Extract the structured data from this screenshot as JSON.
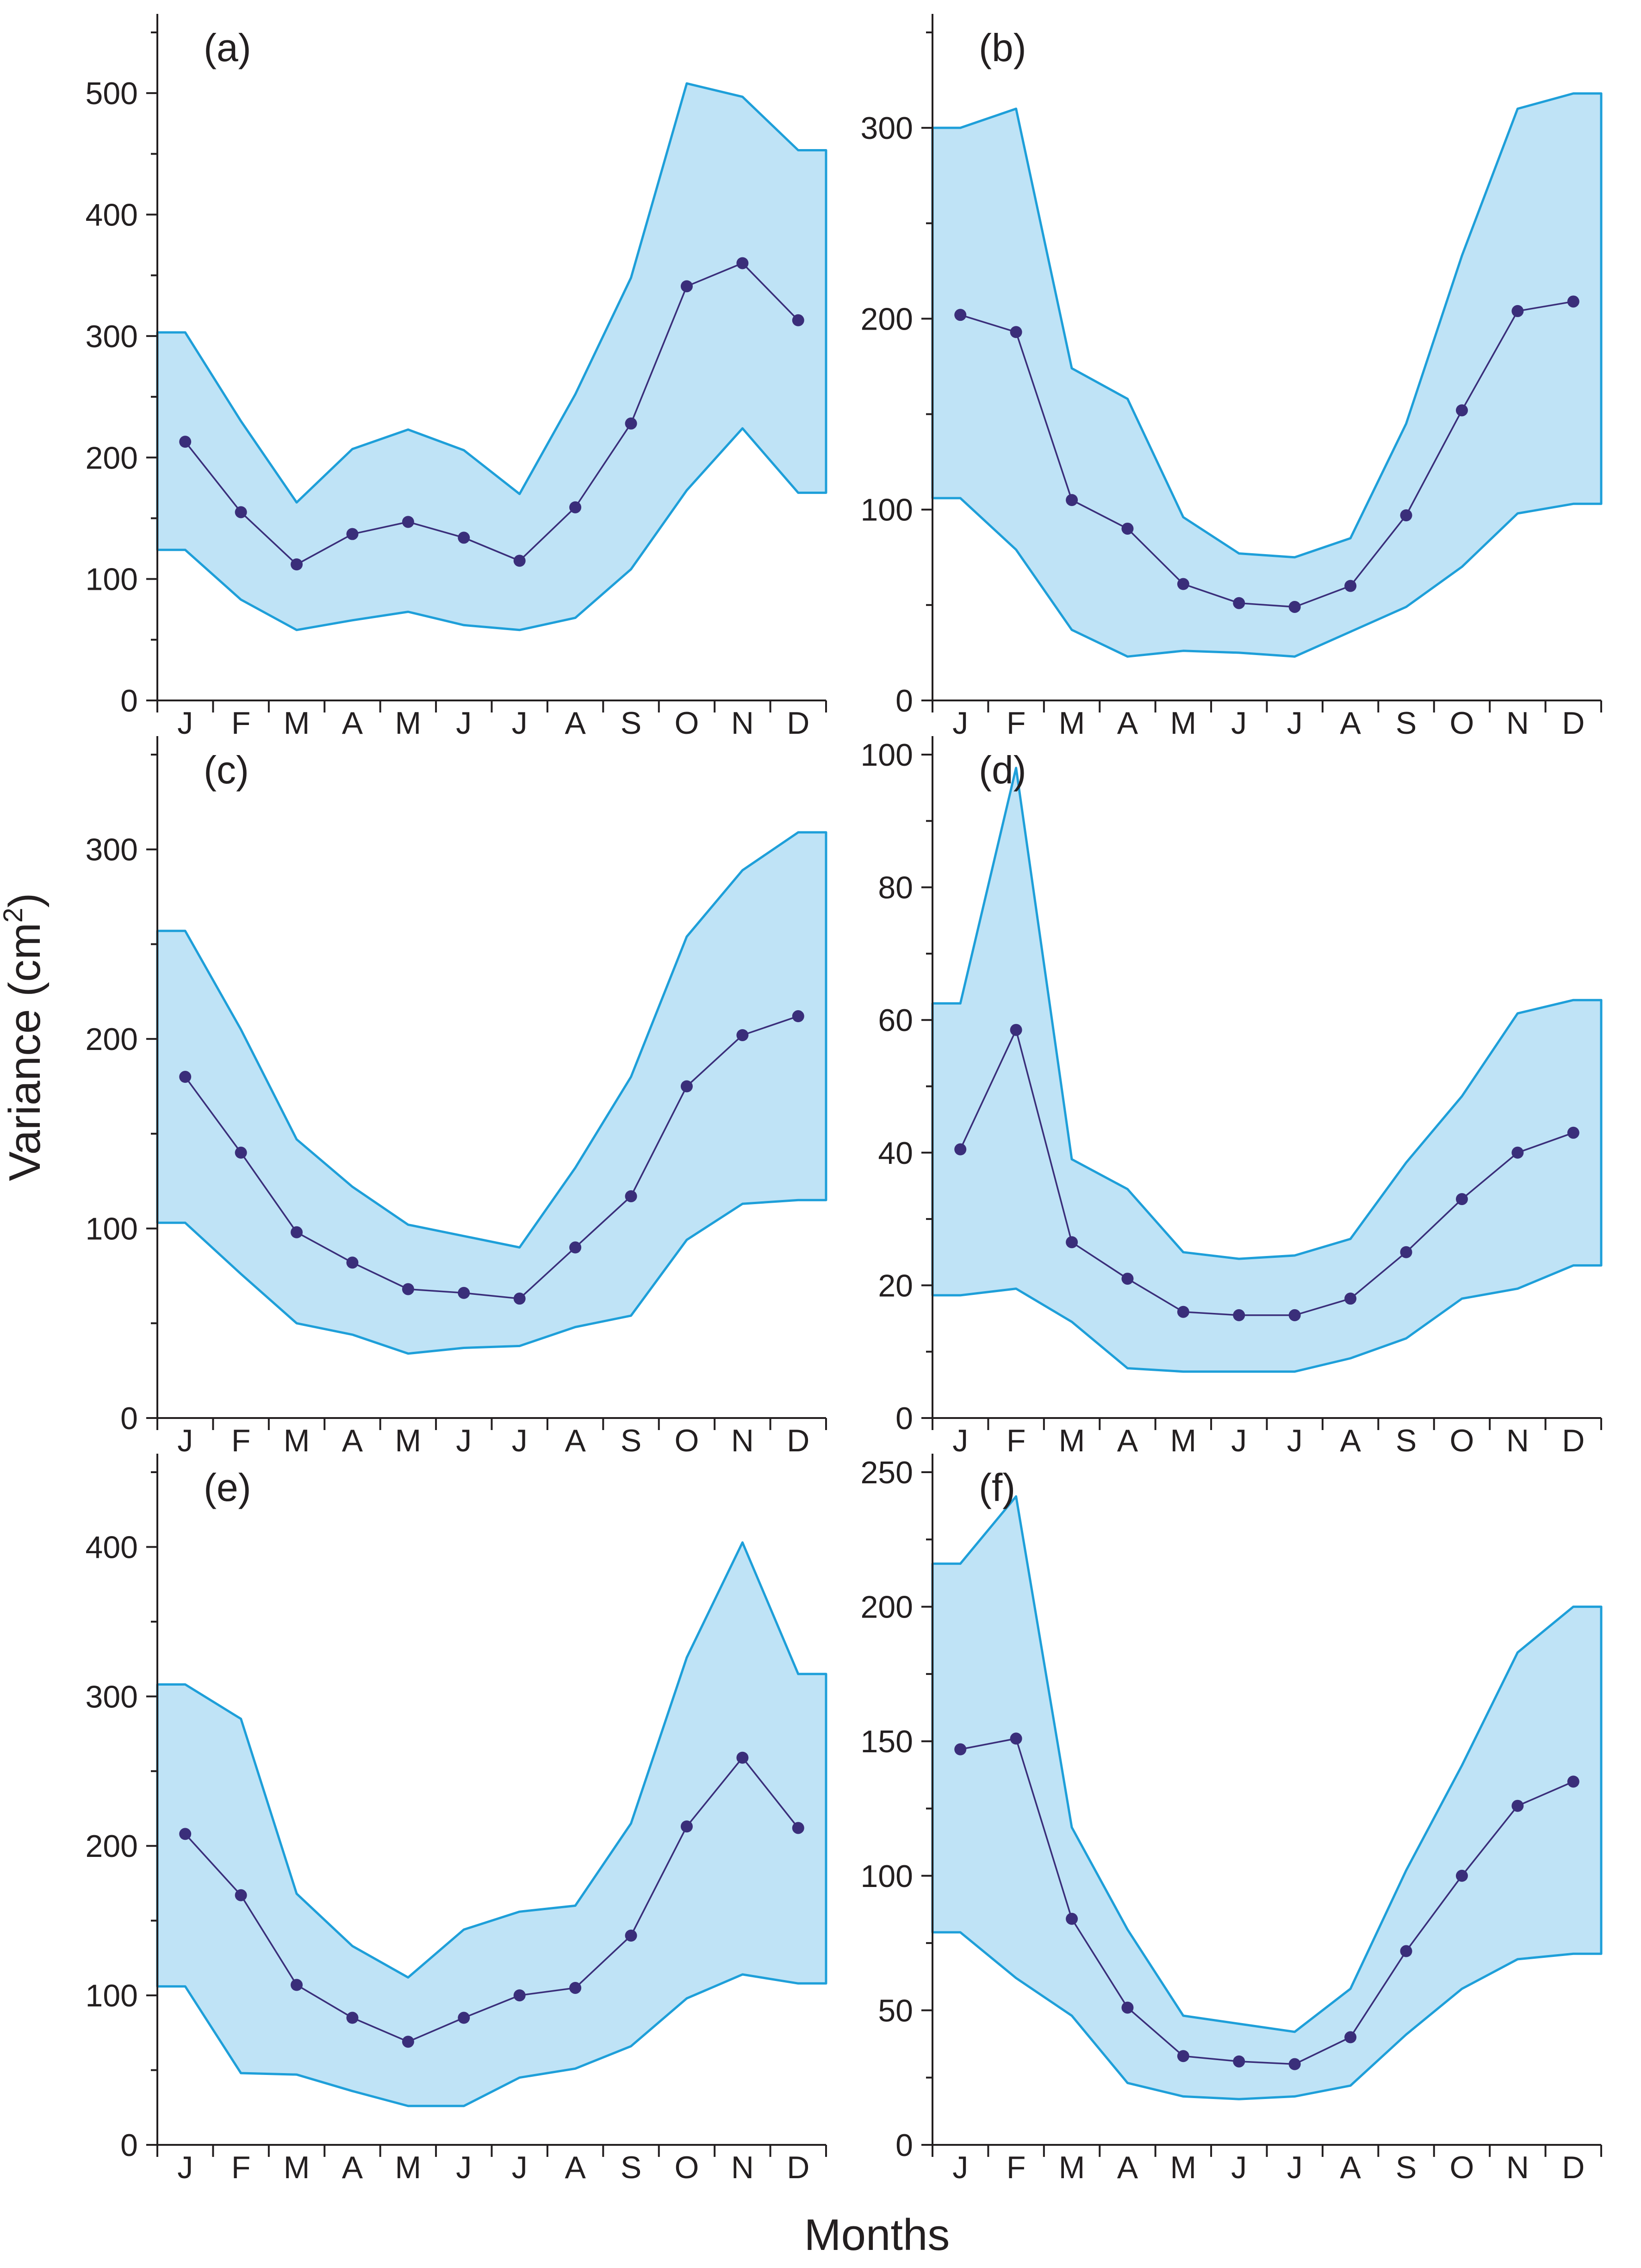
{
  "figure": {
    "ylabel": "Variance (cm",
    "ylabel_sup": "2",
    "ylabel_close": ")",
    "xlabel": "Months"
  },
  "colors": {
    "band_fill": "#bfe3f6",
    "band_stroke": "#1e9fd9",
    "mean": "#3a2e7a",
    "axis": "#231f20"
  },
  "chart_data": [
    {
      "type": "area",
      "panel": "(a)",
      "categories": [
        "J",
        "F",
        "M",
        "A",
        "M",
        "J",
        "J",
        "A",
        "S",
        "O",
        "N",
        "D"
      ],
      "ylim": [
        0,
        550
      ],
      "yticks": [
        0,
        100,
        200,
        300,
        400,
        500
      ],
      "series": [
        {
          "name": "mean",
          "values": [
            213,
            155,
            112,
            137,
            147,
            134,
            115,
            159,
            228,
            341,
            360,
            313
          ]
        },
        {
          "name": "upper",
          "values": [
            303,
            230,
            163,
            207,
            223,
            206,
            170,
            252,
            348,
            508,
            497,
            453
          ]
        },
        {
          "name": "lower",
          "values": [
            124,
            83,
            58,
            66,
            73,
            62,
            58,
            68,
            108,
            173,
            224,
            171
          ]
        }
      ]
    },
    {
      "type": "area",
      "panel": "(b)",
      "categories": [
        "J",
        "F",
        "M",
        "A",
        "M",
        "J",
        "J",
        "A",
        "S",
        "O",
        "N",
        "D"
      ],
      "ylim": [
        0,
        350
      ],
      "yticks": [
        0,
        100,
        200,
        300
      ],
      "series": [
        {
          "name": "mean",
          "values": [
            202,
            193,
            105,
            90,
            61,
            51,
            49,
            60,
            97,
            152,
            204,
            209
          ]
        },
        {
          "name": "upper",
          "values": [
            300,
            310,
            174,
            158,
            96,
            77,
            75,
            85,
            145,
            233,
            310,
            318
          ]
        },
        {
          "name": "lower",
          "values": [
            106,
            79,
            37,
            23,
            26,
            25,
            23,
            36,
            49,
            70,
            98,
            103
          ]
        }
      ]
    },
    {
      "type": "area",
      "panel": "(c)",
      "categories": [
        "J",
        "F",
        "M",
        "A",
        "M",
        "J",
        "J",
        "A",
        "S",
        "O",
        "N",
        "D"
      ],
      "ylim": [
        0,
        350
      ],
      "yticks": [
        0,
        100,
        200,
        300
      ],
      "series": [
        {
          "name": "mean",
          "values": [
            180,
            140,
            98,
            82,
            68,
            66,
            63,
            90,
            117,
            175,
            202,
            212
          ]
        },
        {
          "name": "upper",
          "values": [
            257,
            205,
            147,
            122,
            102,
            96,
            90,
            132,
            180,
            254,
            289,
            309
          ]
        },
        {
          "name": "lower",
          "values": [
            103,
            76,
            50,
            44,
            34,
            37,
            38,
            48,
            54,
            94,
            113,
            115
          ]
        }
      ]
    },
    {
      "type": "area",
      "panel": "(d)",
      "categories": [
        "J",
        "F",
        "M",
        "A",
        "M",
        "J",
        "J",
        "A",
        "S",
        "O",
        "N",
        "D"
      ],
      "ylim": [
        0,
        100
      ],
      "yticks": [
        0,
        20,
        40,
        60,
        80,
        100
      ],
      "series": [
        {
          "name": "mean",
          "values": [
            40.5,
            58.5,
            26.5,
            21,
            16,
            15.5,
            15.5,
            18,
            25,
            33,
            40,
            43
          ]
        },
        {
          "name": "upper",
          "values": [
            62.5,
            98,
            39,
            34.5,
            25,
            24,
            24.5,
            27,
            38.5,
            48.5,
            61,
            63
          ]
        },
        {
          "name": "lower",
          "values": [
            18.5,
            19.5,
            14.5,
            7.5,
            7,
            7,
            7,
            9,
            12,
            18,
            19.5,
            23
          ]
        }
      ]
    },
    {
      "type": "area",
      "panel": "(e)",
      "categories": [
        "J",
        "F",
        "M",
        "A",
        "M",
        "J",
        "J",
        "A",
        "S",
        "O",
        "N",
        "D"
      ],
      "ylim": [
        0,
        450
      ],
      "yticks": [
        0,
        100,
        200,
        300,
        400
      ],
      "series": [
        {
          "name": "mean",
          "values": [
            208,
            167,
            107,
            85,
            69,
            85,
            100,
            105,
            140,
            213,
            259,
            212
          ]
        },
        {
          "name": "upper",
          "values": [
            308,
            285,
            168,
            133,
            112,
            144,
            156,
            160,
            215,
            326,
            403,
            315
          ]
        },
        {
          "name": "lower",
          "values": [
            106,
            48,
            47,
            36,
            26,
            26,
            45,
            51,
            66,
            98,
            114,
            108
          ]
        }
      ]
    },
    {
      "type": "area",
      "panel": "(f)",
      "categories": [
        "J",
        "F",
        "M",
        "A",
        "M",
        "J",
        "J",
        "A",
        "S",
        "O",
        "N",
        "D"
      ],
      "ylim": [
        0,
        250
      ],
      "yticks": [
        0,
        50,
        100,
        150,
        200,
        250
      ],
      "series": [
        {
          "name": "mean",
          "values": [
            147,
            151,
            84,
            51,
            33,
            31,
            30,
            40,
            72,
            100,
            126,
            135
          ]
        },
        {
          "name": "upper",
          "values": [
            216,
            241,
            118,
            80,
            48,
            45,
            42,
            58,
            102,
            141,
            183,
            200
          ]
        },
        {
          "name": "lower",
          "values": [
            79,
            62,
            48,
            23,
            18,
            17,
            18,
            22,
            41,
            58,
            69,
            71
          ]
        }
      ]
    }
  ]
}
